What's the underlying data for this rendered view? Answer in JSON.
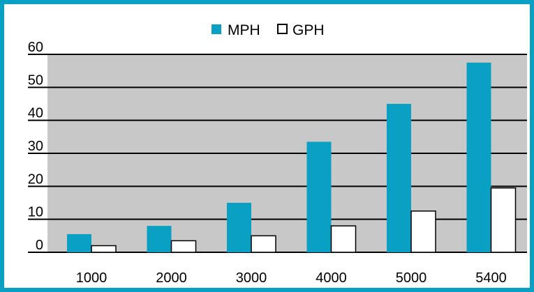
{
  "chart_data": {
    "type": "bar",
    "title": "",
    "xlabel": "",
    "ylabel": "",
    "categories": [
      "1000",
      "2000",
      "3000",
      "4000",
      "5000",
      "5400"
    ],
    "y_ticks": [
      "0",
      "10",
      "20",
      "30",
      "40",
      "50",
      "60"
    ],
    "series": [
      {
        "name": "MPH",
        "values": [
          5.5,
          8,
          15,
          33.5,
          45,
          57.5
        ],
        "color": "#0aa0c4"
      },
      {
        "name": "GPH",
        "values": [
          2,
          3.5,
          5,
          8,
          12.5,
          19.5
        ],
        "color": "#ffffff"
      }
    ],
    "ylim": [
      0,
      60
    ],
    "grid": true,
    "legend_position": "top",
    "plot_background": "#c8c8c8"
  }
}
